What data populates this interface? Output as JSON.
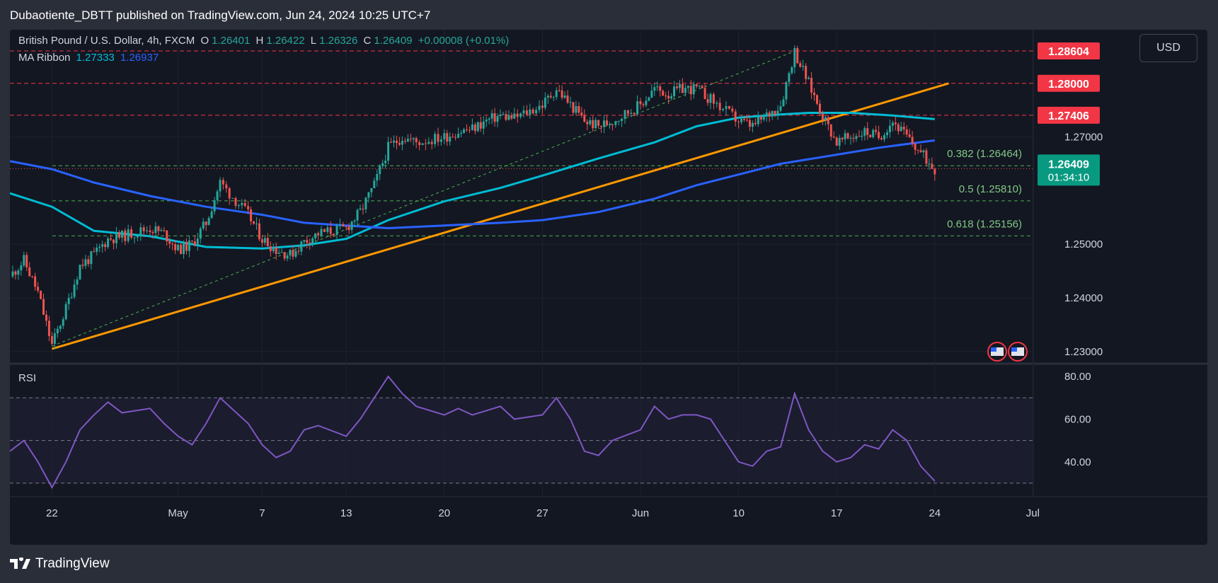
{
  "publisher_line": "Dubaotiente_DBTT published on TradingView.com, Jun 24, 2024 10:25 UTC+7",
  "legend": {
    "symbol": "British Pound / U.S. Dollar, 4h, FXCM",
    "open_label": "O",
    "open": "1.26401",
    "high_label": "H",
    "high": "1.26422",
    "low_label": "L",
    "low": "1.26326",
    "close_label": "C",
    "close": "1.26409",
    "change": "+0.00008 (+0.01%)",
    "ribbon_label": "MA Ribbon",
    "ribbon_v1": "1.27333",
    "ribbon_v2": "1.26937"
  },
  "currency_button": "USD",
  "rsi_label": "RSI",
  "footer_brand": "TradingView",
  "colors": {
    "up": "#26a69a",
    "down": "#ef5350",
    "ma_fast": "#00bcd4",
    "ma_slow": "#2962ff",
    "trendline": "#ff9800",
    "rsi": "#7e57c2",
    "fib": "#4caf50",
    "resistance": "#f23645"
  },
  "chart_data": [
    {
      "type": "candlestick",
      "title": "British Pound / U.S. Dollar, 4h, FXCM",
      "ylim": [
        1.228,
        1.29
      ],
      "y_ticks": [
        "1.23000",
        "1.24000",
        "1.25000",
        "1.27000"
      ],
      "x_ticks": [
        {
          "label": "22",
          "date": "2024-04-22"
        },
        {
          "label": "May",
          "date": "2024-05-01"
        },
        {
          "label": "7",
          "date": "2024-05-07"
        },
        {
          "label": "13",
          "date": "2024-05-13"
        },
        {
          "label": "20",
          "date": "2024-05-20"
        },
        {
          "label": "27",
          "date": "2024-05-27"
        },
        {
          "label": "Jun",
          "date": "2024-06-03"
        },
        {
          "label": "10",
          "date": "2024-06-10"
        },
        {
          "label": "17",
          "date": "2024-06-17"
        },
        {
          "label": "24",
          "date": "2024-06-24"
        },
        {
          "label": "Jul",
          "date": "2024-07-01"
        }
      ],
      "price_path": [
        [
          "2024-04-19",
          1.244
        ],
        [
          "2024-04-20",
          1.247
        ],
        [
          "2024-04-21",
          1.241
        ],
        [
          "2024-04-22",
          1.2312
        ],
        [
          "2024-04-23",
          1.238
        ],
        [
          "2024-04-24",
          1.246
        ],
        [
          "2024-04-25",
          1.248
        ],
        [
          "2024-04-26",
          1.251
        ],
        [
          "2024-04-27",
          1.2515
        ],
        [
          "2024-04-29",
          1.253
        ],
        [
          "2024-04-30",
          1.252
        ],
        [
          "2024-05-01",
          1.249
        ],
        [
          "2024-05-02",
          1.25
        ],
        [
          "2024-05-03",
          1.254
        ],
        [
          "2024-05-04",
          1.2615
        ],
        [
          "2024-05-06",
          1.2555
        ],
        [
          "2024-05-07",
          1.251
        ],
        [
          "2024-05-08",
          1.249
        ],
        [
          "2024-05-09",
          1.248
        ],
        [
          "2024-05-10",
          1.2505
        ],
        [
          "2024-05-11",
          1.252
        ],
        [
          "2024-05-13",
          1.253
        ],
        [
          "2024-05-14",
          1.256
        ],
        [
          "2024-05-15",
          1.261
        ],
        [
          "2024-05-16",
          1.268
        ],
        [
          "2024-05-17",
          1.27
        ],
        [
          "2024-05-18",
          1.269
        ],
        [
          "2024-05-20",
          1.27
        ],
        [
          "2024-05-21",
          1.271
        ],
        [
          "2024-05-22",
          1.2715
        ],
        [
          "2024-05-23",
          1.273
        ],
        [
          "2024-05-24",
          1.274
        ],
        [
          "2024-05-25",
          1.2735
        ],
        [
          "2024-05-27",
          1.276
        ],
        [
          "2024-05-28",
          1.279
        ],
        [
          "2024-05-29",
          1.276
        ],
        [
          "2024-05-30",
          1.273
        ],
        [
          "2024-05-31",
          1.272
        ],
        [
          "2024-06-01",
          1.273
        ],
        [
          "2024-06-03",
          1.276
        ],
        [
          "2024-06-04",
          1.279
        ],
        [
          "2024-06-05",
          1.278
        ],
        [
          "2024-06-06",
          1.279
        ],
        [
          "2024-06-07",
          1.279
        ],
        [
          "2024-06-08",
          1.277
        ],
        [
          "2024-06-10",
          1.273
        ],
        [
          "2024-06-11",
          1.272
        ],
        [
          "2024-06-12",
          1.274
        ],
        [
          "2024-06-13",
          1.276
        ],
        [
          "2024-06-14",
          1.286
        ],
        [
          "2024-06-15",
          1.28
        ],
        [
          "2024-06-16",
          1.274
        ],
        [
          "2024-06-17",
          1.269
        ],
        [
          "2024-06-18",
          1.27
        ],
        [
          "2024-06-19",
          1.271
        ],
        [
          "2024-06-20",
          1.27
        ],
        [
          "2024-06-21",
          1.273
        ],
        [
          "2024-06-22",
          1.27
        ],
        [
          "2024-06-23",
          1.267
        ],
        [
          "2024-06-24",
          1.2641
        ]
      ],
      "ma_ribbon": [
        {
          "name": "MA Ribbon",
          "value": "1.27333",
          "color": "#00bcd4",
          "points": [
            [
              "2024-04-19",
              1.2595
            ],
            [
              "2024-04-22",
              1.257
            ],
            [
              "2024-04-25",
              1.2525
            ],
            [
              "2024-04-29",
              1.2515
            ],
            [
              "2024-05-03",
              1.2495
            ],
            [
              "2024-05-07",
              1.2492
            ],
            [
              "2024-05-10",
              1.2498
            ],
            [
              "2024-05-13",
              1.251
            ],
            [
              "2024-05-16",
              1.2545
            ],
            [
              "2024-05-20",
              1.258
            ],
            [
              "2024-05-24",
              1.2605
            ],
            [
              "2024-05-27",
              1.2628
            ],
            [
              "2024-05-31",
              1.266
            ],
            [
              "2024-06-04",
              1.269
            ],
            [
              "2024-06-07",
              1.272
            ],
            [
              "2024-06-10",
              1.2736
            ],
            [
              "2024-06-13",
              1.2742
            ],
            [
              "2024-06-15",
              1.2745
            ],
            [
              "2024-06-18",
              1.2745
            ],
            [
              "2024-06-21",
              1.274
            ],
            [
              "2024-06-24",
              1.27333
            ]
          ]
        },
        {
          "name": "MA Ribbon",
          "value": "1.26937",
          "color": "#2962ff",
          "points": [
            [
              "2024-04-19",
              1.2655
            ],
            [
              "2024-04-22",
              1.264
            ],
            [
              "2024-04-25",
              1.2615
            ],
            [
              "2024-04-29",
              1.259
            ],
            [
              "2024-05-03",
              1.257
            ],
            [
              "2024-05-07",
              1.2555
            ],
            [
              "2024-05-10",
              1.254
            ],
            [
              "2024-05-13",
              1.2535
            ],
            [
              "2024-05-16",
              1.253
            ],
            [
              "2024-05-20",
              1.2535
            ],
            [
              "2024-05-24",
              1.254
            ],
            [
              "2024-05-27",
              1.2545
            ],
            [
              "2024-05-31",
              1.256
            ],
            [
              "2024-06-04",
              1.2585
            ],
            [
              "2024-06-07",
              1.261
            ],
            [
              "2024-06-10",
              1.263
            ],
            [
              "2024-06-13",
              1.265
            ],
            [
              "2024-06-17",
              1.2667
            ],
            [
              "2024-06-20",
              1.268
            ],
            [
              "2024-06-24",
              1.26937
            ]
          ]
        }
      ],
      "trendline": {
        "color": "#ff9800",
        "start": [
          "2024-04-22",
          1.2305
        ],
        "end": [
          "2024-06-25",
          1.28
        ]
      },
      "channel_line": {
        "start": [
          "2024-04-22",
          1.231
        ],
        "end": [
          "2024-06-14",
          1.286
        ]
      },
      "horizontal_levels": [
        {
          "label": "1.28604",
          "value": 1.28604,
          "style": "resistance"
        },
        {
          "label": "1.28000",
          "value": 1.28,
          "style": "resistance"
        },
        {
          "label": "1.27406",
          "value": 1.27406,
          "style": "resistance"
        },
        {
          "label": "0.382 (1.26464)",
          "value": 1.26464,
          "style": "fib"
        },
        {
          "label": "0.5 (1.25810)",
          "value": 1.2581,
          "style": "fib"
        },
        {
          "label": "0.618 (1.25156)",
          "value": 1.25156,
          "style": "fib"
        }
      ],
      "current_price": {
        "value": "1.26409",
        "countdown": "01:34:10"
      }
    },
    {
      "type": "line",
      "title": "RSI",
      "ylim": [
        25,
        85
      ],
      "y_ticks": [
        "80.00",
        "60.00",
        "40.00"
      ],
      "bands": [
        30,
        50,
        70
      ],
      "color": "#7e57c2",
      "points": [
        [
          "2024-04-19",
          45
        ],
        [
          "2024-04-20",
          50
        ],
        [
          "2024-04-21",
          40
        ],
        [
          "2024-04-22",
          28
        ],
        [
          "2024-04-23",
          40
        ],
        [
          "2024-04-24",
          55
        ],
        [
          "2024-04-25",
          62
        ],
        [
          "2024-04-26",
          68
        ],
        [
          "2024-04-27",
          63
        ],
        [
          "2024-04-29",
          65
        ],
        [
          "2024-04-30",
          58
        ],
        [
          "2024-05-01",
          52
        ],
        [
          "2024-05-02",
          48
        ],
        [
          "2024-05-03",
          58
        ],
        [
          "2024-05-04",
          70
        ],
        [
          "2024-05-06",
          58
        ],
        [
          "2024-05-07",
          48
        ],
        [
          "2024-05-08",
          42
        ],
        [
          "2024-05-09",
          45
        ],
        [
          "2024-05-10",
          55
        ],
        [
          "2024-05-11",
          57
        ],
        [
          "2024-05-13",
          52
        ],
        [
          "2024-05-14",
          60
        ],
        [
          "2024-05-15",
          70
        ],
        [
          "2024-05-16",
          80
        ],
        [
          "2024-05-17",
          72
        ],
        [
          "2024-05-18",
          66
        ],
        [
          "2024-05-20",
          62
        ],
        [
          "2024-05-21",
          65
        ],
        [
          "2024-05-22",
          62
        ],
        [
          "2024-05-23",
          64
        ],
        [
          "2024-05-24",
          66
        ],
        [
          "2024-05-25",
          60
        ],
        [
          "2024-05-27",
          62
        ],
        [
          "2024-05-28",
          70
        ],
        [
          "2024-05-29",
          60
        ],
        [
          "2024-05-30",
          45
        ],
        [
          "2024-05-31",
          43
        ],
        [
          "2024-06-01",
          50
        ],
        [
          "2024-06-03",
          55
        ],
        [
          "2024-06-04",
          66
        ],
        [
          "2024-06-05",
          60
        ],
        [
          "2024-06-06",
          62
        ],
        [
          "2024-06-07",
          62
        ],
        [
          "2024-06-08",
          60
        ],
        [
          "2024-06-10",
          40
        ],
        [
          "2024-06-11",
          38
        ],
        [
          "2024-06-12",
          45
        ],
        [
          "2024-06-13",
          47
        ],
        [
          "2024-06-14",
          72
        ],
        [
          "2024-06-15",
          55
        ],
        [
          "2024-06-16",
          45
        ],
        [
          "2024-06-17",
          40
        ],
        [
          "2024-06-18",
          42
        ],
        [
          "2024-06-19",
          48
        ],
        [
          "2024-06-20",
          46
        ],
        [
          "2024-06-21",
          55
        ],
        [
          "2024-06-22",
          50
        ],
        [
          "2024-06-23",
          38
        ],
        [
          "2024-06-24",
          31
        ]
      ]
    }
  ]
}
